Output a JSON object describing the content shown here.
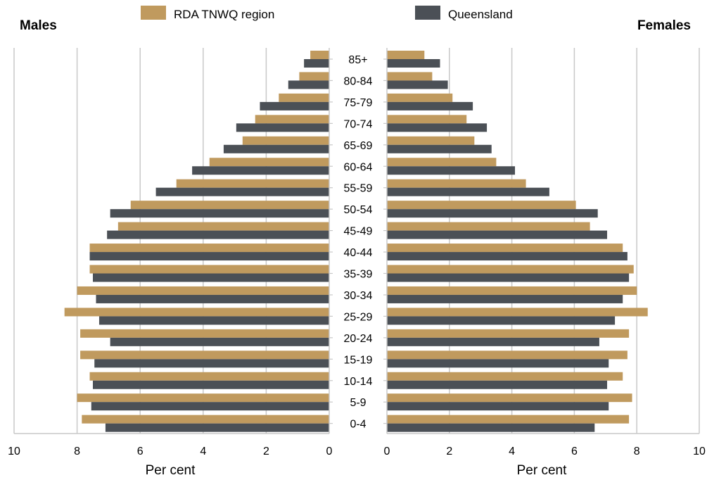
{
  "chart_data": {
    "type": "bar",
    "orientation": "horizontal-population-pyramid",
    "left_title": "Males",
    "right_title": "Females",
    "xlabel": "Per cent",
    "xlim": [
      0,
      10
    ],
    "xticks": [
      0,
      2,
      4,
      6,
      8,
      10
    ],
    "grid": true,
    "legend_position": "top",
    "categories": [
      "85+",
      "80-84",
      "75-79",
      "70-74",
      "65-69",
      "60-64",
      "55-59",
      "50-54",
      "45-49",
      "40-44",
      "35-39",
      "30-34",
      "25-29",
      "20-24",
      "15-19",
      "10-14",
      "5-9",
      "0-4"
    ],
    "series": [
      {
        "name": "RDA TNWQ region",
        "color": "#C09A5E",
        "males": [
          0.6,
          0.95,
          1.6,
          2.35,
          2.75,
          3.8,
          4.85,
          6.3,
          6.7,
          7.6,
          7.6,
          8.0,
          8.4,
          7.9,
          7.9,
          7.6,
          8.0,
          7.85
        ],
        "females": [
          1.2,
          1.45,
          2.1,
          2.55,
          2.8,
          3.5,
          4.45,
          6.05,
          6.5,
          7.55,
          7.9,
          8.0,
          8.35,
          7.75,
          7.7,
          7.55,
          7.85,
          7.75
        ]
      },
      {
        "name": "Queensland",
        "color": "#4B5056",
        "males": [
          0.8,
          1.3,
          2.2,
          2.95,
          3.35,
          4.35,
          5.5,
          6.95,
          7.05,
          7.6,
          7.5,
          7.4,
          7.3,
          6.95,
          7.45,
          7.5,
          7.55,
          7.1
        ],
        "females": [
          1.7,
          1.95,
          2.75,
          3.2,
          3.35,
          4.1,
          5.2,
          6.75,
          7.05,
          7.7,
          7.75,
          7.55,
          7.3,
          6.8,
          7.1,
          7.05,
          7.1,
          6.65
        ]
      }
    ]
  }
}
